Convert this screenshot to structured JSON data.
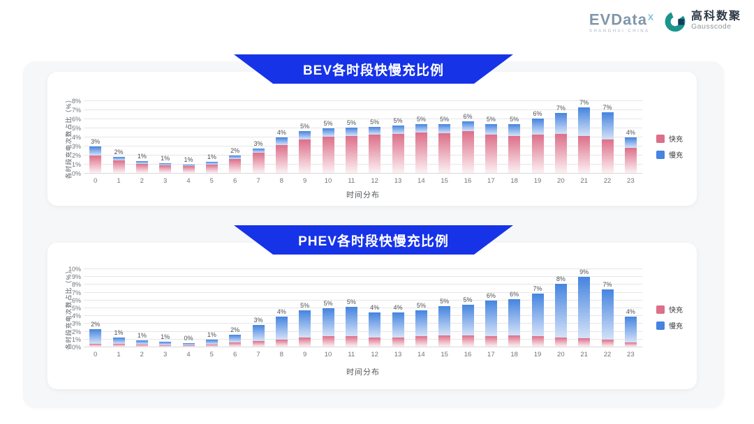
{
  "header": {
    "evdata_logo": {
      "wordmark": "EVData",
      "superscript": "X",
      "subtext": "SHANGHAI CHINA"
    },
    "gausscode_logo": {
      "cn": "高科数聚",
      "en": "Gausscode"
    }
  },
  "colors": {
    "banner_blue": "#1733e8",
    "fast_pink": "#DC6F89",
    "fast_pink_fade": "#FCF0F3",
    "slow_blue": "#4584DF",
    "slow_blue_fade": "#D4E2F8",
    "teal_mark": "#1b948d",
    "navy_mark": "#16395c"
  },
  "chart_data": [
    {
      "id": "bev",
      "type": "bar",
      "stacked": true,
      "title": "BEV各时段快慢充比例",
      "xlabel": "时间分布",
      "ylabel": "各时段充电次数占比（%）",
      "ylim": [
        0,
        8
      ],
      "ytick_step": 1,
      "ytick_suffix": "%",
      "grid": true,
      "legend_position": "right",
      "categories": [
        "0",
        "1",
        "2",
        "3",
        "4",
        "5",
        "6",
        "7",
        "8",
        "9",
        "10",
        "11",
        "12",
        "13",
        "14",
        "15",
        "16",
        "17",
        "18",
        "19",
        "20",
        "21",
        "22",
        "23"
      ],
      "series": [
        {
          "name": "快充",
          "color": "#DC6F89",
          "fade": "#FCF0F3",
          "values": [
            1.9,
            1.4,
            1.0,
            0.85,
            0.8,
            0.95,
            1.55,
            2.2,
            3.1,
            3.7,
            4.0,
            4.1,
            4.2,
            4.3,
            4.45,
            4.4,
            4.6,
            4.2,
            4.1,
            4.2,
            4.3,
            4.1,
            3.7,
            2.8
          ]
        },
        {
          "name": "慢充",
          "color": "#4584DF",
          "fade": "#D4E2F8",
          "values": [
            1.0,
            0.4,
            0.3,
            0.25,
            0.15,
            0.25,
            0.35,
            0.5,
            0.8,
            0.9,
            0.9,
            0.9,
            0.9,
            0.9,
            0.95,
            1.0,
            1.1,
            1.2,
            1.3,
            1.8,
            2.3,
            3.1,
            3.0,
            1.1
          ]
        }
      ],
      "bar_labels": [
        "3%",
        "2%",
        "1%",
        "1%",
        "1%",
        "1%",
        "2%",
        "3%",
        "4%",
        "5%",
        "5%",
        "5%",
        "5%",
        "5%",
        "5%",
        "5%",
        "6%",
        "5%",
        "5%",
        "6%",
        "7%",
        "7%",
        "7%",
        "4%"
      ]
    },
    {
      "id": "phev",
      "type": "bar",
      "stacked": true,
      "title": "PHEV各时段快慢充比例",
      "xlabel": "时间分布",
      "ylabel": "各时段充电次数占比（%）",
      "ylim": [
        0,
        10
      ],
      "ytick_step": 1,
      "ytick_suffix": "%",
      "grid": true,
      "legend_position": "right",
      "categories": [
        "0",
        "1",
        "2",
        "3",
        "4",
        "5",
        "6",
        "7",
        "8",
        "9",
        "10",
        "11",
        "12",
        "13",
        "14",
        "15",
        "16",
        "17",
        "18",
        "19",
        "20",
        "21",
        "22",
        "23"
      ],
      "series": [
        {
          "name": "快充",
          "color": "#DC6F89",
          "fade": "#FCF0F3",
          "values": [
            0.4,
            0.35,
            0.25,
            0.2,
            0.15,
            0.25,
            0.55,
            0.75,
            0.9,
            1.2,
            1.3,
            1.35,
            1.2,
            1.2,
            1.3,
            1.4,
            1.4,
            1.35,
            1.4,
            1.3,
            1.2,
            1.1,
            0.9,
            0.55
          ]
        },
        {
          "name": "慢充",
          "color": "#4584DF",
          "fade": "#D4E2F8",
          "values": [
            1.8,
            0.85,
            0.55,
            0.4,
            0.3,
            0.6,
            0.95,
            2.05,
            2.9,
            3.4,
            3.6,
            3.75,
            3.2,
            3.2,
            3.3,
            3.8,
            4.0,
            4.55,
            4.7,
            5.5,
            6.8,
            7.8,
            6.4,
            3.25
          ]
        }
      ],
      "bar_labels": [
        "2%",
        "1%",
        "1%",
        "1%",
        "0%",
        "1%",
        "2%",
        "3%",
        "4%",
        "5%",
        "5%",
        "5%",
        "4%",
        "4%",
        "5%",
        "5%",
        "5%",
        "6%",
        "6%",
        "7%",
        "8%",
        "9%",
        "7%",
        "4%"
      ]
    }
  ]
}
